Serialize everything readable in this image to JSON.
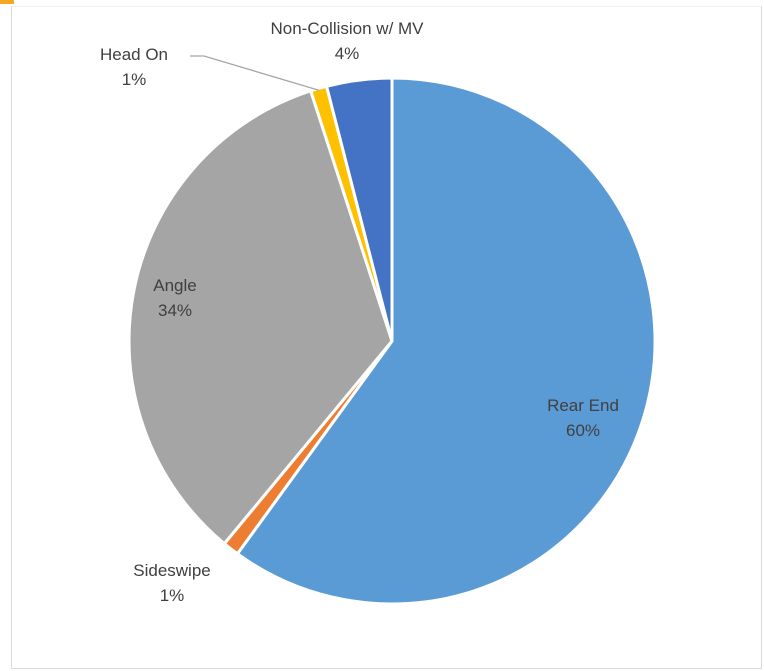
{
  "chart_data": {
    "type": "pie",
    "title": "",
    "slices": [
      {
        "label": "Rear End",
        "value": 60,
        "percent_label": "60%",
        "color": "#5b9bd5"
      },
      {
        "label": "Sideswipe",
        "value": 1,
        "percent_label": "1%",
        "color": "#ed7d31"
      },
      {
        "label": "Angle",
        "value": 34,
        "percent_label": "34%",
        "color": "#a5a5a5"
      },
      {
        "label": "Head On",
        "value": 1,
        "percent_label": "1%",
        "color": "#ffc000"
      },
      {
        "label": "Non-Collision w/ MV",
        "value": 4,
        "percent_label": "4%",
        "color": "#4472c4"
      }
    ],
    "start_angle_deg": 0,
    "direction": "clockwise",
    "legend": "none",
    "data_labels": "category and percentage"
  },
  "colors": {
    "frame_border": "#d9d9d9",
    "accent_corner": "#f5a623",
    "leader_line": "#a6a6a6",
    "label_text": "#404040"
  }
}
